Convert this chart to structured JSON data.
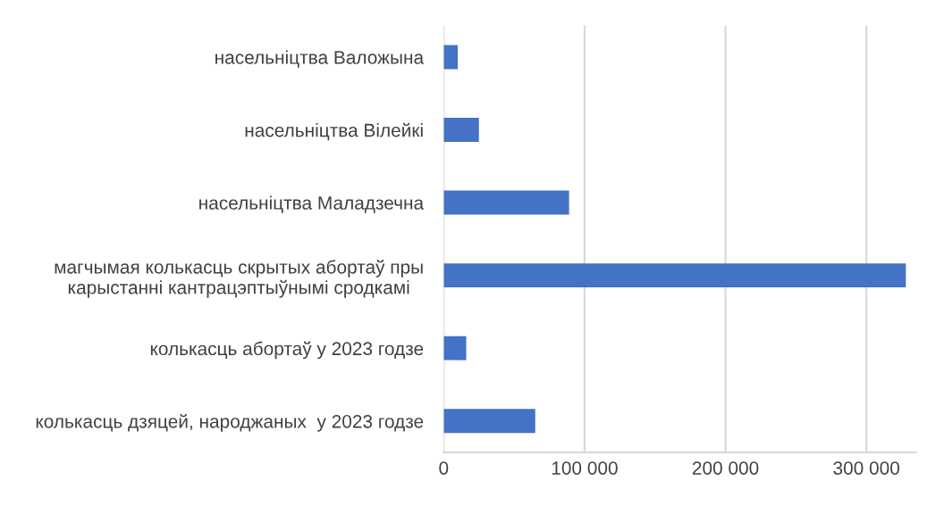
{
  "chart_data": {
    "type": "bar",
    "orientation": "horizontal",
    "categories": [
      "насельніцтва Валожына",
      "насельніцтва Вілейкі",
      "насельніцтва Маладзечна",
      "магчымая колькасць скрытых абортаў пры\nкарыстанні кантрацэптыўнымі сродкамі",
      "колькасць абортаў у 2023 годзе",
      "колькасць дзяцей, народжаных  у 2023 годзе"
    ],
    "values": [
      10000,
      25000,
      89000,
      328000,
      16000,
      65000
    ],
    "color": "#4472c4",
    "xlim": [
      0,
      335000
    ],
    "xticks": [
      0,
      {
        "value": 100000,
        "label": "100 000"
      },
      {
        "value": 200000,
        "label": "200 000"
      },
      {
        "value": 300000,
        "label": "300 000"
      }
    ],
    "grid": "x"
  }
}
